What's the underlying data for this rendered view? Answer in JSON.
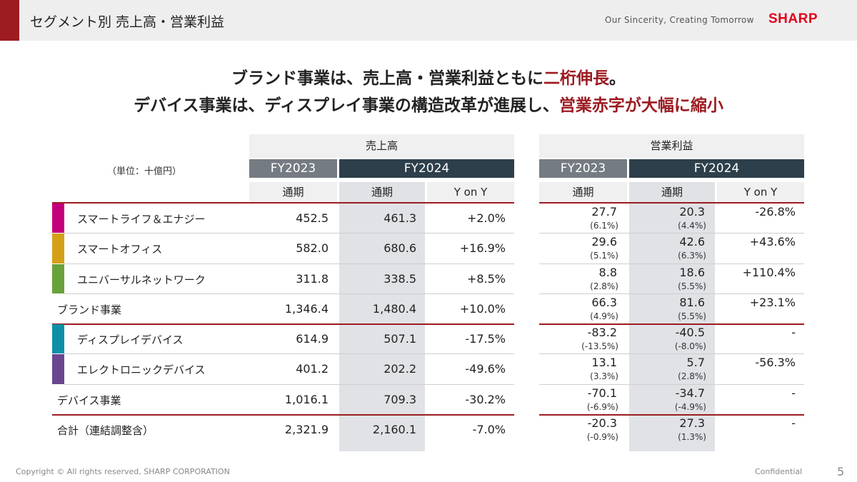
{
  "header": {
    "title": "セグメント別 売上高・営業利益",
    "tagline": "Our Sincerity, Creating Tomorrow",
    "logo": "SHARP",
    "accent_color": "#9c1c22",
    "logo_color": "#e3001b"
  },
  "headline": {
    "line1_a": "ブランド事業は、売上高・営業利益ともに",
    "line1_b": "二桁伸長",
    "line1_c": "。",
    "line2_a": "デバイス事業は、ディスプレイ事業の構造改革が進展し、",
    "line2_b": "営業赤字が大幅に縮小"
  },
  "table": {
    "unit": "（単位：十億円）",
    "sales_header": "売上高",
    "profit_header": "営業利益",
    "fy_prev": "FY2023",
    "fy_cur": "FY2024",
    "sub_full_year": "通期",
    "sub_yoy": "Y on Y",
    "rows": [
      {
        "label": "スマートライフ＆エナジー",
        "bar": "#c4007a",
        "s23": "452.5",
        "s24": "461.3",
        "syoy": "+2.0%",
        "p23": "27.7",
        "p23m": "(6.1%)",
        "p24": "20.3",
        "p24m": "(4.4%)",
        "pyoy": "-26.8%"
      },
      {
        "label": "スマートオフィス",
        "bar": "#d4a017",
        "s23": "582.0",
        "s24": "680.6",
        "syoy": "+16.9%",
        "p23": "29.6",
        "p23m": "(5.1%)",
        "p24": "42.6",
        "p24m": "(6.3%)",
        "pyoy": "+43.6%"
      },
      {
        "label": "ユニバーサルネットワーク",
        "bar": "#6aa23a",
        "s23": "311.8",
        "s24": "338.5",
        "syoy": "+8.5%",
        "p23": "8.8",
        "p23m": "(2.8%)",
        "p24": "18.6",
        "p24m": "(5.5%)",
        "pyoy": "+110.4%"
      },
      {
        "label": "ブランド事業",
        "bar": "",
        "s23": "1,346.4",
        "s24": "1,480.4",
        "syoy": "+10.0%",
        "p23": "66.3",
        "p23m": "(4.9%)",
        "p24": "81.6",
        "p24m": "(5.5%)",
        "pyoy": "+23.1%"
      },
      {
        "label": "ディスプレイデバイス",
        "bar": "#0e8fa8",
        "s23": "614.9",
        "s24": "507.1",
        "syoy": "-17.5%",
        "p23": "-83.2",
        "p23m": "(-13.5%)",
        "p24": "-40.5",
        "p24m": "(-8.0%)",
        "pyoy": "-"
      },
      {
        "label": "エレクトロニックデバイス",
        "bar": "#6b4690",
        "s23": "401.2",
        "s24": "202.2",
        "syoy": "-49.6%",
        "p23": "13.1",
        "p23m": "(3.3%)",
        "p24": "5.7",
        "p24m": "(2.8%)",
        "pyoy": "-56.3%"
      },
      {
        "label": "デバイス事業",
        "bar": "",
        "s23": "1,016.1",
        "s24": "709.3",
        "syoy": "-30.2%",
        "p23": "-70.1",
        "p23m": "(-6.9%)",
        "p24": "-34.7",
        "p24m": "(-4.9%)",
        "pyoy": "-"
      },
      {
        "label": "合計（連結調整含）",
        "bar": "",
        "s23": "2,321.9",
        "s24": "2,160.1",
        "syoy": "-7.0%",
        "p23": "-20.3",
        "p23m": "(-0.9%)",
        "p24": "27.3",
        "p24m": "(1.3%)",
        "pyoy": "-"
      }
    ]
  },
  "footer": {
    "copyright": "Copyright © All rights reserved, SHARP CORPORATION",
    "confidential": "Confidential",
    "page": "5"
  }
}
